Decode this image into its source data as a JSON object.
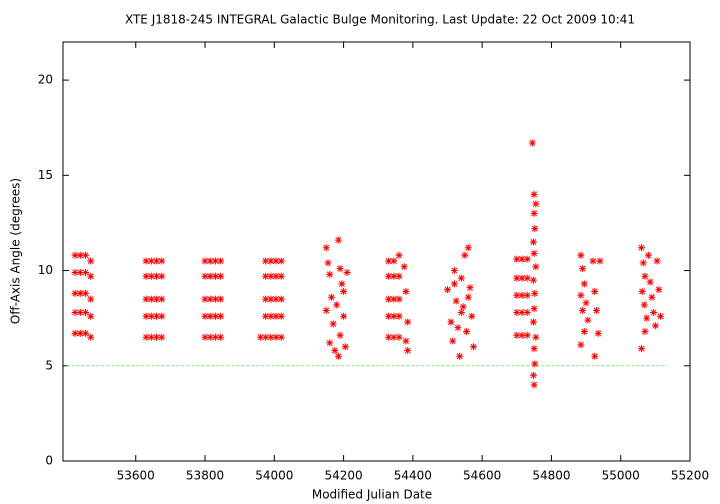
{
  "chart_data": {
    "type": "scatter",
    "title": "XTE J1818-245   INTEGRAL Galactic Bulge Monitoring.  Last Update: 22 Oct 2009 10:41",
    "x_label": "Modified Julian Date",
    "y_label": "Off-Axis Angle (degrees)",
    "xlim": [
      53390,
      55200
    ],
    "ylim": [
      0,
      22
    ],
    "xticks": [
      53600,
      53800,
      54000,
      54200,
      54400,
      54600,
      54800,
      55000,
      55200
    ],
    "yticks": [
      0,
      5,
      10,
      15,
      20
    ],
    "color": "#ff0000",
    "reference_line": {
      "y": 5,
      "x": [
        53400,
        55135
      ],
      "color": "#80e080"
    },
    "x": [
      53425,
      53440,
      53455,
      53470,
      53425,
      53440,
      53455,
      53470,
      53425,
      53440,
      53455,
      53470,
      53425,
      53440,
      53455,
      53470,
      53425,
      53440,
      53455,
      53470,
      53630,
      53645,
      53660,
      53675,
      53630,
      53645,
      53660,
      53675,
      53630,
      53645,
      53660,
      53675,
      53630,
      53645,
      53660,
      53675,
      53630,
      53645,
      53660,
      53675,
      53800,
      53815,
      53830,
      53845,
      53800,
      53815,
      53830,
      53845,
      53800,
      53815,
      53830,
      53845,
      53800,
      53815,
      53830,
      53845,
      53800,
      53815,
      53830,
      53845,
      53975,
      53990,
      54005,
      54020,
      53975,
      53990,
      54005,
      54020,
      53975,
      53990,
      54005,
      54020,
      53975,
      53990,
      54005,
      54020,
      53975,
      53990,
      54005,
      54020,
      53960,
      54150,
      54155,
      54160,
      54165,
      54150,
      54170,
      54160,
      54175,
      54185,
      54190,
      54195,
      54180,
      54200,
      54190,
      54185,
      54205,
      54210,
      54200,
      54330,
      54345,
      54360,
      54330,
      54345,
      54360,
      54330,
      54345,
      54360,
      54330,
      54345,
      54360,
      54330,
      54345,
      54360,
      54375,
      54380,
      54385,
      54380,
      54385,
      54500,
      54510,
      54515,
      54520,
      54525,
      54530,
      54535,
      54540,
      54545,
      54550,
      54555,
      54560,
      54565,
      54570,
      54575,
      54520,
      54560,
      54540,
      54700,
      54715,
      54730,
      54700,
      54715,
      54730,
      54700,
      54715,
      54730,
      54700,
      54715,
      54730,
      54700,
      54715,
      54730,
      54745,
      54750,
      54755,
      54750,
      54752,
      54748,
      54750,
      54755,
      54748,
      54752,
      54750,
      54748,
      54755,
      54750,
      54752,
      54748,
      54750,
      54885,
      54890,
      54895,
      54885,
      54900,
      54890,
      54905,
      54895,
      54885,
      54920,
      54925,
      54930,
      54925,
      54940,
      54935,
      55060,
      55065,
      55070,
      55062,
      55068,
      55075,
      55060,
      55080,
      55085,
      55090,
      55095,
      55100,
      55105,
      55110,
      55115,
      55070
    ],
    "values": [
      10.8,
      10.8,
      10.8,
      10.5,
      9.9,
      9.9,
      9.9,
      9.7,
      8.8,
      8.8,
      8.8,
      8.5,
      7.8,
      7.8,
      7.8,
      7.6,
      6.7,
      6.7,
      6.7,
      6.5,
      10.5,
      10.5,
      10.5,
      10.5,
      9.7,
      9.7,
      9.7,
      9.7,
      8.5,
      8.5,
      8.5,
      8.5,
      7.6,
      7.6,
      7.6,
      7.6,
      6.5,
      6.5,
      6.5,
      6.5,
      10.5,
      10.5,
      10.5,
      10.5,
      9.7,
      9.7,
      9.7,
      9.7,
      8.5,
      8.5,
      8.5,
      8.5,
      7.6,
      7.6,
      7.6,
      7.6,
      6.5,
      6.5,
      6.5,
      6.5,
      10.5,
      10.5,
      10.5,
      10.5,
      9.7,
      9.7,
      9.7,
      9.7,
      8.5,
      8.5,
      8.5,
      8.5,
      7.6,
      7.6,
      7.6,
      7.6,
      6.5,
      6.5,
      6.5,
      6.5,
      6.5,
      11.2,
      10.4,
      9.8,
      8.6,
      7.9,
      7.2,
      6.2,
      5.8,
      11.6,
      10.1,
      9.3,
      8.2,
      7.6,
      6.6,
      5.5,
      6.0,
      9.9,
      8.9,
      10.5,
      10.5,
      10.8,
      9.7,
      9.7,
      9.7,
      8.5,
      8.5,
      8.5,
      7.6,
      7.6,
      7.6,
      6.5,
      6.5,
      6.5,
      10.2,
      8.9,
      7.3,
      6.3,
      5.8,
      9.0,
      7.3,
      6.3,
      10.0,
      8.4,
      7.0,
      5.5,
      9.6,
      8.1,
      10.8,
      6.8,
      11.2,
      9.1,
      7.6,
      6.0,
      9.3,
      8.6,
      7.8,
      10.6,
      10.6,
      10.6,
      9.6,
      9.6,
      9.6,
      8.7,
      8.7,
      8.7,
      7.8,
      7.8,
      7.8,
      6.6,
      6.6,
      6.6,
      16.7,
      14.0,
      13.5,
      13.0,
      12.2,
      11.5,
      10.9,
      10.2,
      9.5,
      8.8,
      8.0,
      7.3,
      6.5,
      5.9,
      5.1,
      4.5,
      4.0,
      10.8,
      10.1,
      9.3,
      8.7,
      8.3,
      7.9,
      7.4,
      6.8,
      6.1,
      10.5,
      8.9,
      7.9,
      5.5,
      10.5,
      6.7,
      11.2,
      10.4,
      9.7,
      8.9,
      8.2,
      7.5,
      5.9,
      10.8,
      9.4,
      8.6,
      7.8,
      7.1,
      10.5,
      9.0,
      7.6,
      6.8
    ]
  }
}
